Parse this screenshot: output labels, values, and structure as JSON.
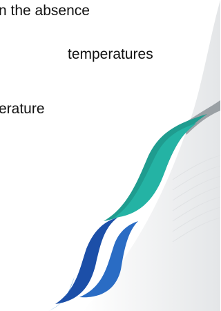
{
  "lines": [
    "n the absence",
    "temperatures",
    "erature"
  ]
}
